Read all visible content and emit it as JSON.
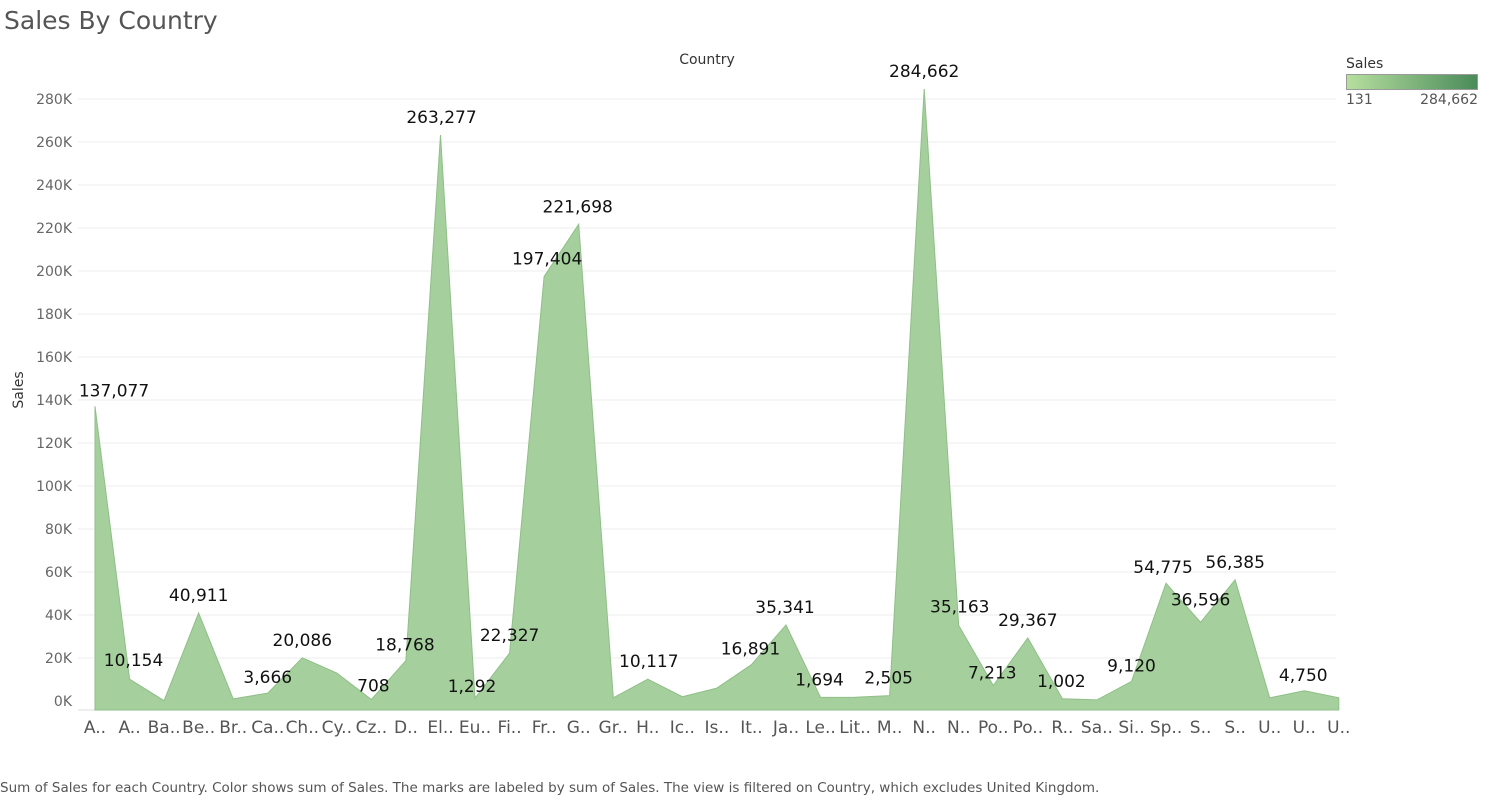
{
  "title": "Sales By Country",
  "caption": "Sum of Sales for each Country.  Color shows sum of Sales.  The marks are labeled by sum of Sales. The view is filtered on Country, which excludes United Kingdom.",
  "legend": {
    "title": "Sales",
    "min_label": "131",
    "max_label": "284,662",
    "color_low": "#b6df9f",
    "color_high": "#4b8b5a"
  },
  "chart_data": {
    "type": "area",
    "title": "Sales By Country",
    "xlabel": "Country",
    "ylabel": "Sales",
    "ylim": [
      0,
      290000
    ],
    "y_ticks": [
      "0K",
      "20K",
      "40K",
      "60K",
      "80K",
      "100K",
      "120K",
      "140K",
      "160K",
      "180K",
      "200K",
      "220K",
      "240K",
      "260K",
      "280K"
    ],
    "grid": true,
    "fill_color": "#a5cf9d",
    "stroke_color": "#8fbf87",
    "categories": [
      "A..",
      "A..",
      "Ba..",
      "Be..",
      "Br..",
      "Ca..",
      "Ch..",
      "Cy..",
      "Cz..",
      "D..",
      "El..",
      "Eu..",
      "Fi..",
      "Fr..",
      "G..",
      "Gr..",
      "H..",
      "Ic..",
      "Is..",
      "It..",
      "Ja..",
      "Le..",
      "Lit..",
      "M..",
      "N..",
      "N..",
      "Po..",
      "Po..",
      "R..",
      "Sa..",
      "Si..",
      "Sp..",
      "S..",
      "S..",
      "U..",
      "U..",
      "U.."
    ],
    "values": [
      137077,
      10154,
      131,
      40911,
      1000,
      3666,
      20086,
      13000,
      708,
      18768,
      263277,
      1292,
      22327,
      197404,
      221698,
      1500,
      10117,
      2000,
      6000,
      16891,
      35341,
      1694,
      1700,
      2505,
      284662,
      35163,
      7213,
      29367,
      1002,
      500,
      9120,
      54775,
      36596,
      56385,
      1500,
      4750,
      1500
    ],
    "data_labels": [
      "137,077",
      "10,154",
      "",
      "40,911",
      "",
      "3,666",
      "20,086",
      "",
      "708",
      "18,768",
      "263,277",
      "1,292",
      "22,327",
      "197,404",
      "221,698",
      "",
      "10,117",
      "",
      "",
      "16,891",
      "35,341",
      "1,694",
      "",
      "2,505",
      "284,662",
      "35,163",
      "7,213",
      "29,367",
      "1,002",
      "",
      "9,120",
      "54,775",
      "36,596",
      "56,385",
      "",
      "4,750",
      ""
    ],
    "legend_position": "top-right"
  }
}
